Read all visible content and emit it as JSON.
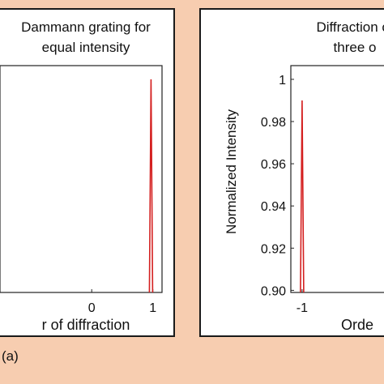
{
  "chart_data": [
    {
      "type": "bar",
      "title_lines": [
        "Dammann grating for",
        "equal intensity"
      ],
      "xlabel": "r of diffraction",
      "ylabel": "",
      "x_ticks": [
        0,
        1
      ],
      "x_tick_labels": [
        "0",
        "1"
      ],
      "xlim": [
        -1.5,
        1.15
      ],
      "ylim": [
        0.899,
        1.0065
      ],
      "series": [
        {
          "color": "#d42020",
          "points": [
            {
              "x": 0.97,
              "y": 1.0
            }
          ]
        }
      ]
    },
    {
      "type": "bar",
      "title_lines": [
        "Diffraction of",
        "three o"
      ],
      "xlabel": "Orde",
      "ylabel": "Normalized Intensity",
      "y_ticks": [
        0.9,
        0.92,
        0.94,
        0.96,
        0.98,
        1.0
      ],
      "y_tick_labels": [
        "0.90",
        "0.92",
        "0.94",
        "0.96",
        "0.98",
        "1"
      ],
      "x_ticks": [
        -1
      ],
      "x_tick_labels": [
        "-1"
      ],
      "xlim": [
        -1.25,
        1.25
      ],
      "ylim": [
        0.899,
        1.0065
      ],
      "series": [
        {
          "color": "#d42020",
          "points": [
            {
              "x": -1.0,
              "y": 0.99
            }
          ]
        }
      ]
    }
  ],
  "caption": "(a)"
}
